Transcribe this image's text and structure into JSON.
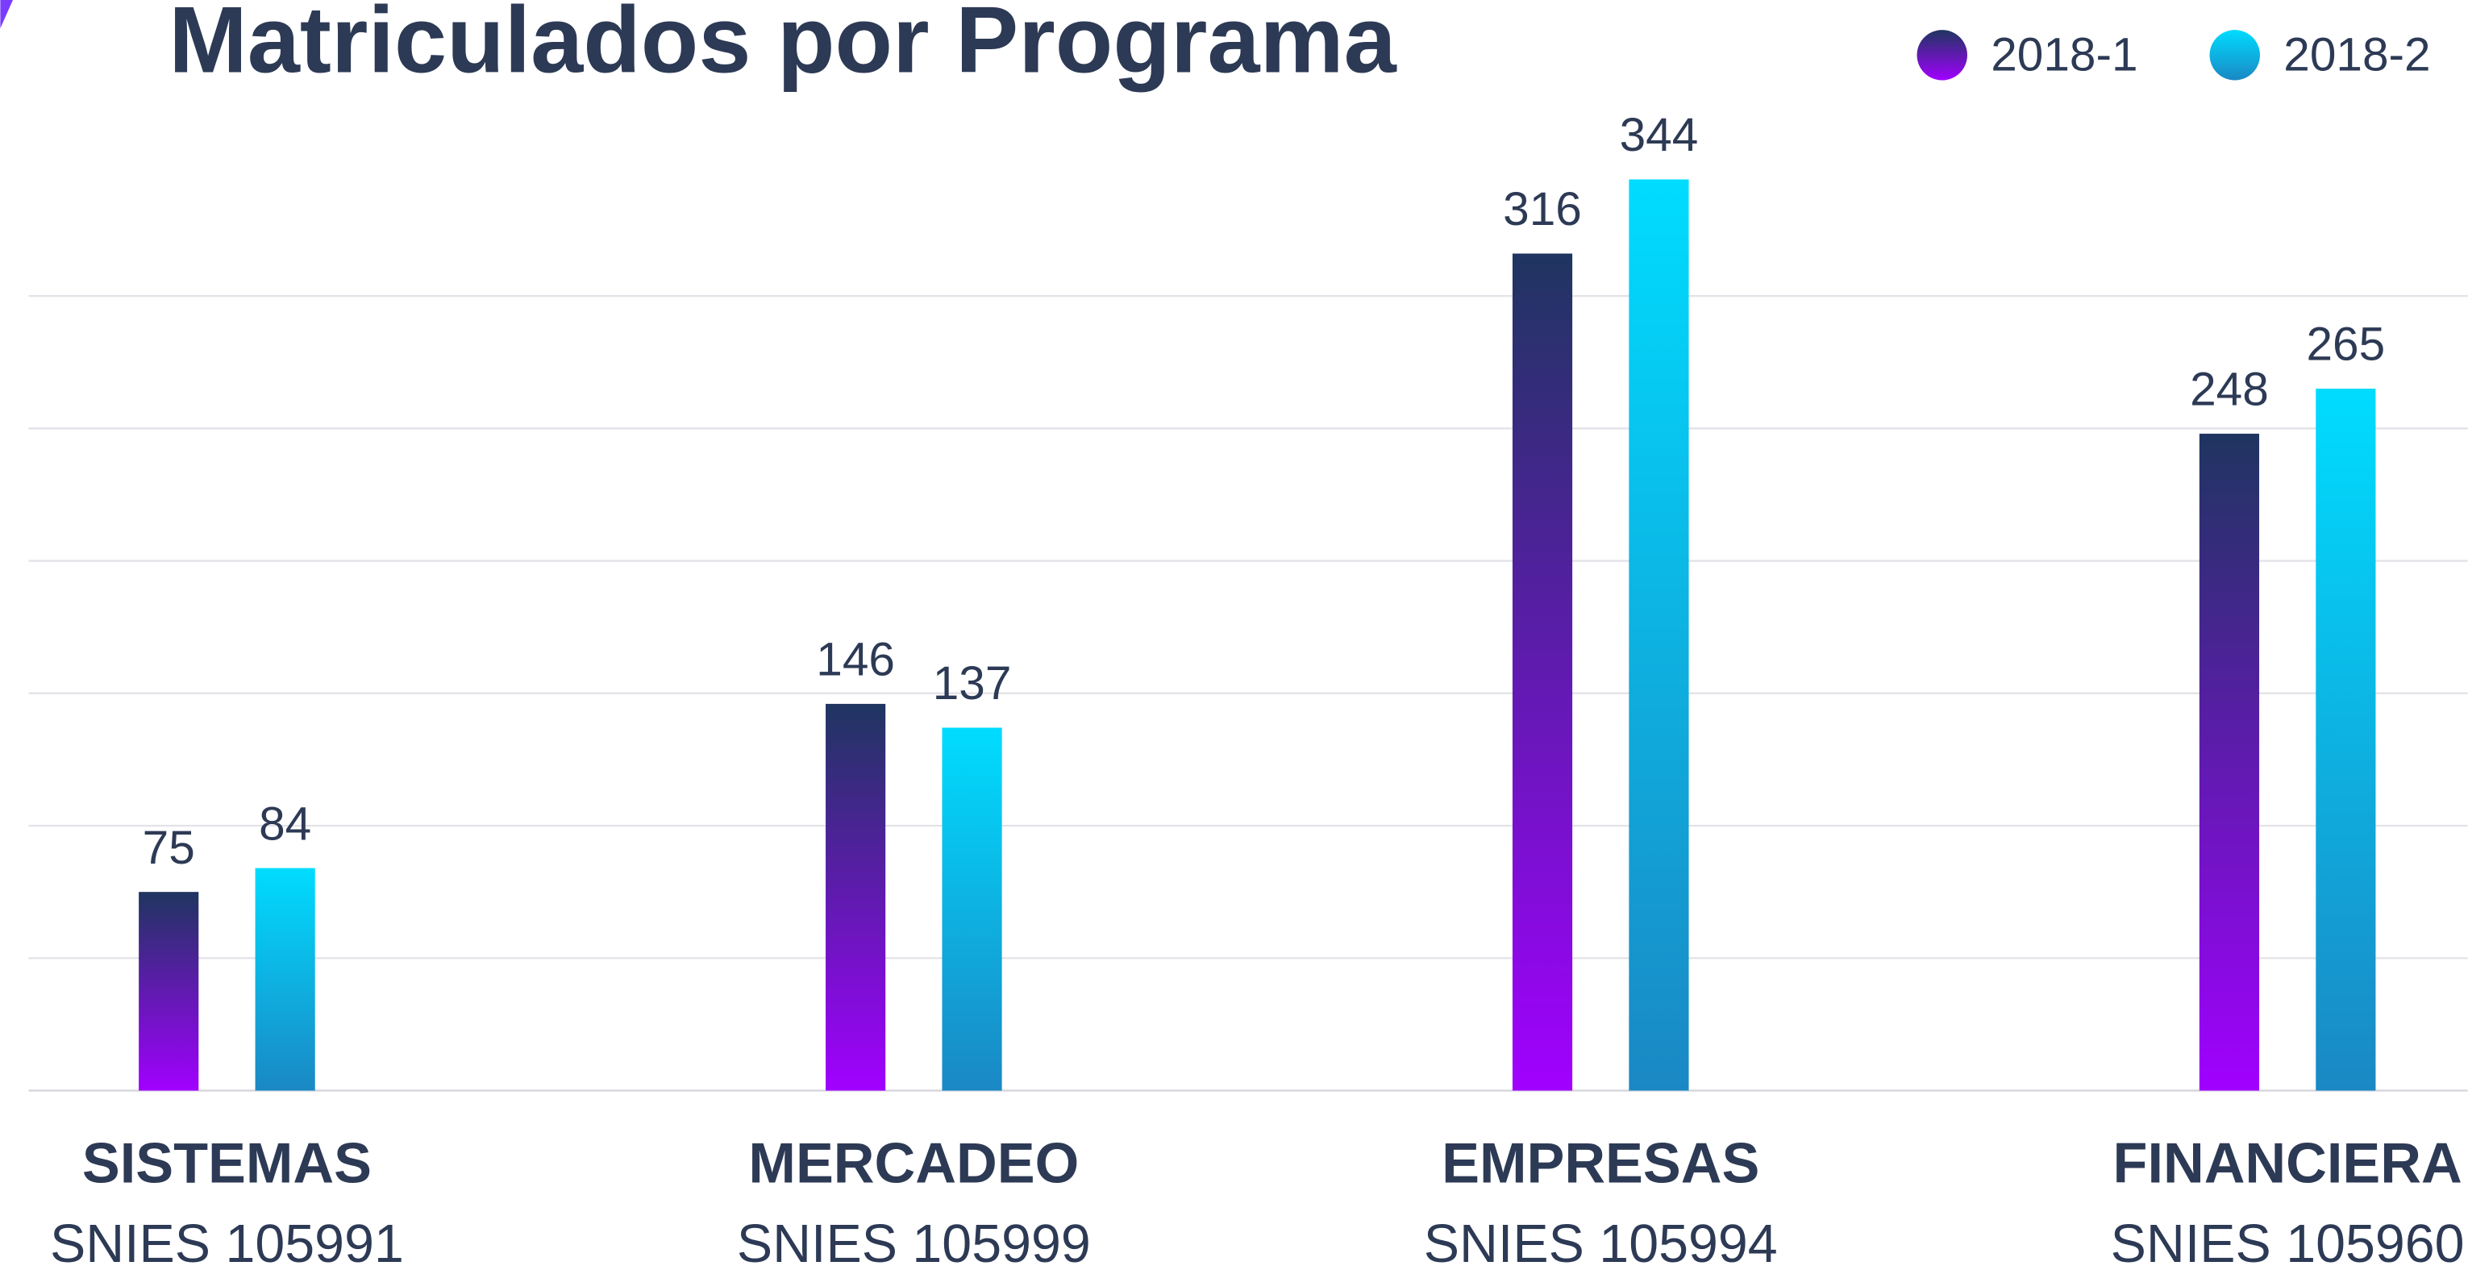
{
  "chart_data": {
    "type": "bar",
    "title": "Matriculados por Programa",
    "categories": [
      "SISTEMAS",
      "MERCADEO",
      "EMPRESAS",
      "FINANCIERA"
    ],
    "category_codes": [
      "SNIES 105991",
      "SNIES 105999",
      "SNIES 105994",
      "SNIES 105960"
    ],
    "series": [
      {
        "name": "2018-1",
        "color": [
          "#1f3560",
          "#a100ff"
        ],
        "values": [
          75,
          146,
          316,
          248
        ]
      },
      {
        "name": "2018-2",
        "color": [
          "#00dcff",
          "#1a88c4"
        ],
        "values": [
          84,
          137,
          344,
          265
        ]
      }
    ],
    "ylim": [
      0,
      370
    ],
    "yticks": [
      0,
      50,
      100,
      150,
      200,
      250,
      300
    ],
    "tick_labels": false,
    "grid": true,
    "legend": "top-right"
  }
}
